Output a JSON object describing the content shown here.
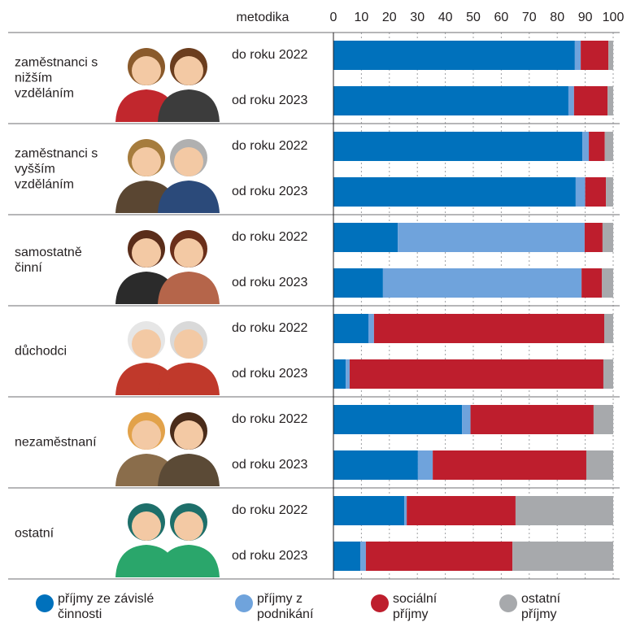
{
  "chart_data": {
    "type": "bar",
    "orientation": "horizontal",
    "stacked": true,
    "header": "metodika",
    "groups": [
      "zaměstnanci s nižším vzděláním",
      "zaměstnanci s vyšším vzděláním",
      "samostatně činní",
      "důchodci",
      "nezaměstnaní",
      "ostatní"
    ],
    "categories": [
      "do roku 2022",
      "od roku 2023",
      "do roku 2022",
      "od roku 2023",
      "do roku 2022",
      "od roku 2023",
      "do roku 2022",
      "od roku 2023",
      "do roku 2022",
      "od roku 2023",
      "do roku 2022",
      "od roku 2023"
    ],
    "xlim": [
      0,
      100
    ],
    "xticks": [
      0,
      10,
      20,
      30,
      40,
      50,
      60,
      70,
      80,
      90,
      100
    ],
    "grid": true,
    "series": [
      {
        "name": "příjmy ze závislé činnosti",
        "color": "#0071bc",
        "values": [
          86.3,
          84,
          89,
          86.6,
          23,
          17.7,
          12.5,
          4.4,
          46,
          30.2,
          25.3,
          9.6
        ]
      },
      {
        "name": "příjmy z podnikání",
        "color": "#6fa3dc",
        "values": [
          2.1,
          2,
          2.3,
          3.4,
          66.8,
          71,
          2,
          1.4,
          3,
          5.3,
          0.9,
          2
        ]
      },
      {
        "name": "sociální příjmy",
        "color": "#be1e2d",
        "values": [
          9.9,
          12,
          5.7,
          7.4,
          6.4,
          7.3,
          82.3,
          90.7,
          44,
          54.9,
          38.9,
          52.4
        ]
      },
      {
        "name": "ostatní příjmy",
        "color": "#a7a9ac",
        "values": [
          1.7,
          2,
          3,
          2.6,
          3.8,
          4,
          3.2,
          3.5,
          7,
          9.6,
          34.9,
          36
        ]
      }
    ]
  }
}
